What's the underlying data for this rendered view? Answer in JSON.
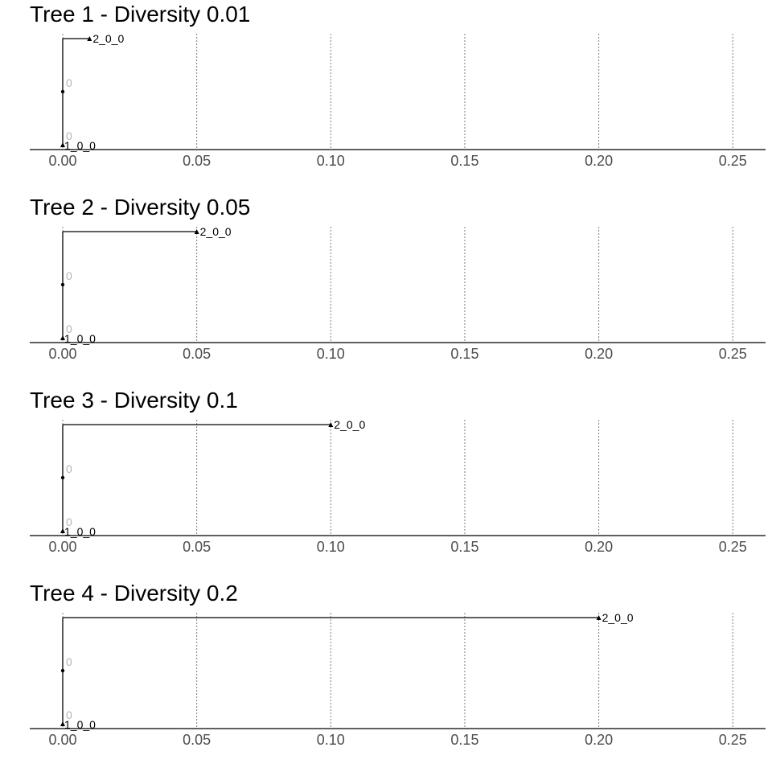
{
  "chart_data": [
    {
      "type": "tree",
      "title": "Tree 1 - Diversity 0.01",
      "xlim": [
        -0.012,
        0.262
      ],
      "ticks": [
        0.0,
        0.05,
        0.1,
        0.15,
        0.2,
        0.25
      ],
      "tick_labels": [
        "0.00",
        "0.05",
        "0.10",
        "0.15",
        "0.20",
        "0.25"
      ],
      "grid": "vertical dotted",
      "branch_length": 0.01,
      "tips": [
        {
          "label": "1_0_0",
          "x": 0.0,
          "position": "bottom"
        },
        {
          "label": "2_0_0",
          "x": 0.01,
          "position": "top"
        }
      ],
      "internal_node": {
        "x": 0.0,
        "label": "0"
      },
      "tip_node_label": "0"
    },
    {
      "type": "tree",
      "title": "Tree 2 - Diversity 0.05",
      "xlim": [
        -0.012,
        0.262
      ],
      "ticks": [
        0.0,
        0.05,
        0.1,
        0.15,
        0.2,
        0.25
      ],
      "tick_labels": [
        "0.00",
        "0.05",
        "0.10",
        "0.15",
        "0.20",
        "0.25"
      ],
      "grid": "vertical dotted",
      "branch_length": 0.05,
      "tips": [
        {
          "label": "1_0_0",
          "x": 0.0,
          "position": "bottom"
        },
        {
          "label": "2_0_0",
          "x": 0.05,
          "position": "top"
        }
      ],
      "internal_node": {
        "x": 0.0,
        "label": "0"
      },
      "tip_node_label": "0"
    },
    {
      "type": "tree",
      "title": "Tree 3 - Diversity 0.1",
      "xlim": [
        -0.012,
        0.262
      ],
      "ticks": [
        0.0,
        0.05,
        0.1,
        0.15,
        0.2,
        0.25
      ],
      "tick_labels": [
        "0.00",
        "0.05",
        "0.10",
        "0.15",
        "0.20",
        "0.25"
      ],
      "grid": "vertical dotted",
      "branch_length": 0.1,
      "tips": [
        {
          "label": "1_0_0",
          "x": 0.0,
          "position": "bottom"
        },
        {
          "label": "2_0_0",
          "x": 0.1,
          "position": "top"
        }
      ],
      "internal_node": {
        "x": 0.0,
        "label": "0"
      },
      "tip_node_label": "0"
    },
    {
      "type": "tree",
      "title": "Tree 4 - Diversity 0.2",
      "xlim": [
        -0.012,
        0.262
      ],
      "ticks": [
        0.0,
        0.05,
        0.1,
        0.15,
        0.2,
        0.25
      ],
      "tick_labels": [
        "0.00",
        "0.05",
        "0.10",
        "0.15",
        "0.20",
        "0.25"
      ],
      "grid": "vertical dotted",
      "branch_length": 0.2,
      "tips": [
        {
          "label": "1_0_0",
          "x": 0.0,
          "position": "bottom"
        },
        {
          "label": "2_0_0",
          "x": 0.2,
          "position": "top"
        }
      ],
      "internal_node": {
        "x": 0.0,
        "label": "0"
      },
      "tip_node_label": "0"
    }
  ],
  "colors": {
    "branch": "#000000",
    "axis": "#000000",
    "grid": "#7f7f7f",
    "tick_label": "#4d4d4d",
    "node_label": "#b3b3b3"
  }
}
